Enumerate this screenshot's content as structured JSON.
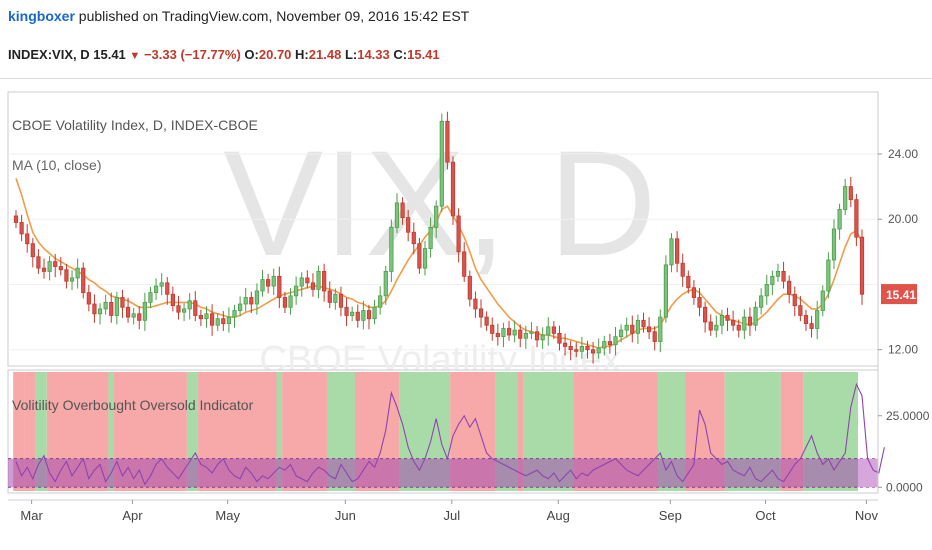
{
  "header": {
    "author": "kingboxer",
    "published_text": " published on TradingView.com, November 09, 2016 15:42 EST",
    "symbol": "INDEX:VIX, D",
    "last": "15.41",
    "change": "−3.33 (−17.77%)",
    "o_label": "O:",
    "o": "20.70",
    "h_label": "H:",
    "h": "21.48",
    "l_label": "L:",
    "l": "14.33",
    "c_label": "C:",
    "c": "15.41",
    "down_arrow": "▼"
  },
  "chart_data": [
    {
      "type": "candlestick",
      "title": "CBOE Volatility Index, D, INDEX-CBOE",
      "study_label": "MA (10, close)",
      "watermark": "VIX, D",
      "watermark_sub": "CBOE Volatility Index",
      "y_ticks": [
        "24.00",
        "20.00",
        "12.00"
      ],
      "y_tick_values": [
        24,
        20,
        12
      ],
      "ylim": [
        11,
        27.8
      ],
      "last_price_label": "15.41",
      "last_price": 15.41,
      "x_ticks": [
        "Mar",
        "Apr",
        "May",
        "Jun",
        "Jul",
        "Aug",
        "Sep",
        "Oct",
        "Nov"
      ],
      "close_series": [
        19.8,
        19.1,
        18.5,
        17.7,
        17.0,
        16.8,
        17.4,
        17.1,
        16.9,
        16.2,
        16.4,
        17.0,
        15.5,
        14.8,
        14.2,
        14.5,
        14.9,
        14.1,
        15.2,
        14.6,
        14.0,
        14.2,
        13.8,
        14.9,
        15.5,
        15.9,
        16.1,
        15.4,
        14.7,
        14.3,
        14.5,
        15.0,
        14.1,
        13.9,
        14.2,
        13.5,
        13.9,
        13.6,
        14.0,
        14.4,
        14.8,
        15.2,
        14.8,
        15.6,
        16.3,
        15.9,
        16.5,
        15.2,
        14.6,
        15.3,
        15.9,
        16.4,
        16.1,
        15.7,
        16.8,
        15.6,
        14.9,
        15.4,
        14.6,
        14.1,
        14.3,
        13.8,
        14.4,
        13.9,
        14.6,
        15.3,
        16.8,
        19.5,
        21.0,
        20.1,
        19.2,
        18.5,
        17.0,
        18.2,
        19.5,
        20.8,
        26.0,
        23.5,
        20.2,
        18.0,
        16.5,
        15.1,
        14.5,
        14.0,
        13.5,
        13.0,
        12.8,
        13.3,
        12.9,
        13.2,
        12.7,
        13.0,
        13.1,
        12.6,
        12.9,
        13.4,
        13.0,
        12.4,
        12.2,
        12.0,
        11.9,
        12.2,
        12.0,
        11.8,
        12.1,
        12.5,
        12.3,
        12.8,
        13.2,
        13.5,
        13.0,
        13.8,
        13.4,
        13.1,
        12.5,
        14.0,
        17.2,
        18.8,
        17.3,
        16.5,
        15.8,
        15.2,
        14.6,
        13.7,
        13.2,
        13.5,
        14.1,
        13.8,
        13.5,
        13.2,
        14.0,
        13.5,
        14.6,
        15.3,
        16.0,
        16.5,
        16.8,
        16.2,
        15.4,
        14.7,
        14.1,
        13.6,
        13.3,
        14.4,
        15.6,
        17.5,
        19.4,
        20.6,
        22.0,
        21.2,
        18.9,
        15.4
      ],
      "ma_10_close_series": [
        22.5,
        21.5,
        20.3,
        19.2,
        18.6,
        18.2,
        17.9,
        17.6,
        17.4,
        17.2,
        17.0,
        16.8,
        16.6,
        16.3,
        16.1,
        15.8,
        15.6,
        15.3,
        15.2,
        15.1,
        15.0,
        14.8,
        14.6,
        14.6,
        14.6,
        14.7,
        14.8,
        14.9,
        14.9,
        14.9,
        14.9,
        14.9,
        14.8,
        14.6,
        14.5,
        14.3,
        14.2,
        14.1,
        14.0,
        14.0,
        14.1,
        14.3,
        14.4,
        14.5,
        14.7,
        14.9,
        15.1,
        15.3,
        15.4,
        15.5,
        15.6,
        15.7,
        15.8,
        15.9,
        15.9,
        15.8,
        15.7,
        15.6,
        15.4,
        15.2,
        15.1,
        14.9,
        14.8,
        14.6,
        14.6,
        14.7,
        15.0,
        15.6,
        16.3,
        16.9,
        17.5,
        18.0,
        18.4,
        18.9,
        19.3,
        19.8,
        20.6,
        20.8,
        20.2,
        19.6,
        18.9,
        18.0,
        17.0,
        16.3,
        15.8,
        15.3,
        14.8,
        14.4,
        14.0,
        13.7,
        13.4,
        13.2,
        13.1,
        13.0,
        12.9,
        12.9,
        12.8,
        12.7,
        12.7,
        12.6,
        12.5,
        12.4,
        12.3,
        12.2,
        12.1,
        12.2,
        12.2,
        12.4,
        12.6,
        12.8,
        13.0,
        13.2,
        13.3,
        13.3,
        13.3,
        13.5,
        14.1,
        14.7,
        15.1,
        15.4,
        15.6,
        15.7,
        15.5,
        15.1,
        14.7,
        14.3,
        14.1,
        13.9,
        13.8,
        13.7,
        13.6,
        13.5,
        13.7,
        14.0,
        14.3,
        14.7,
        15.1,
        15.4,
        15.4,
        15.3,
        15.1,
        14.8,
        14.5,
        14.5,
        14.8,
        15.4,
        16.3,
        17.3,
        18.3,
        19.1,
        19.3,
        18.6
      ]
    },
    {
      "type": "line",
      "title": "Volitility Overbought Oversold Indicator",
      "y_ticks": [
        "25.0000",
        "0.0000"
      ],
      "y_tick_values": [
        25,
        0
      ],
      "ylim": [
        -2,
        41
      ],
      "band_upper": 10,
      "band_lower": 0,
      "colors": {
        "line": "#8e44ad",
        "band": "#a74bb0",
        "overbought_bg": "#f7a8a8",
        "oversold_bg": "#a9dba9"
      },
      "series": [
        {
          "values": [
            9,
            4,
            7,
            3,
            8,
            11,
            5,
            2,
            6,
            9,
            4,
            7,
            10,
            3,
            6,
            8,
            2,
            5,
            9,
            4,
            7,
            3,
            6,
            1,
            4,
            8,
            10,
            7,
            5,
            3,
            6,
            9,
            12,
            8,
            7,
            5,
            8,
            10,
            6,
            4,
            3,
            7,
            5,
            2,
            4,
            3,
            5,
            7,
            6,
            8,
            4,
            3,
            2,
            5,
            7,
            6,
            4,
            3,
            8,
            5,
            2,
            3,
            6,
            9,
            7,
            12,
            20,
            33,
            28,
            22,
            14,
            9,
            6,
            10,
            16,
            24,
            15,
            10,
            18,
            22,
            25,
            21,
            24,
            18,
            12,
            10,
            9,
            8,
            7,
            6,
            5,
            4,
            5,
            6,
            4,
            3,
            5,
            2,
            4,
            6,
            3,
            5,
            4,
            6,
            7,
            8,
            9,
            10,
            8,
            6,
            5,
            4,
            6,
            8,
            10,
            12,
            6,
            9,
            4,
            2,
            5,
            8,
            27,
            22,
            12,
            10,
            8,
            9,
            6,
            5,
            4,
            7,
            3,
            2,
            4,
            6,
            3,
            2,
            5,
            8,
            10,
            14,
            18,
            12,
            8,
            10,
            6,
            9,
            12,
            28,
            36,
            32,
            10,
            6,
            5,
            14
          ]
        }
      ],
      "regime_order": [
        "red",
        "red",
        "green",
        "red",
        "green",
        "red",
        "green",
        "red",
        "green",
        "red",
        "green",
        "red",
        "green",
        "red",
        "green",
        "red",
        "green",
        "red",
        "green",
        "red",
        "green",
        "red",
        "green",
        "red",
        "green",
        "red",
        "green",
        "red",
        "green",
        "red"
      ],
      "regime_length": [
        2,
        2,
        2,
        11,
        1,
        13,
        2,
        14,
        1,
        8,
        5,
        8,
        9,
        8,
        4,
        1,
        9,
        15,
        5,
        7,
        10,
        4,
        11,
        6,
        8,
        4,
        10,
        4,
        5,
        2
      ]
    }
  ]
}
